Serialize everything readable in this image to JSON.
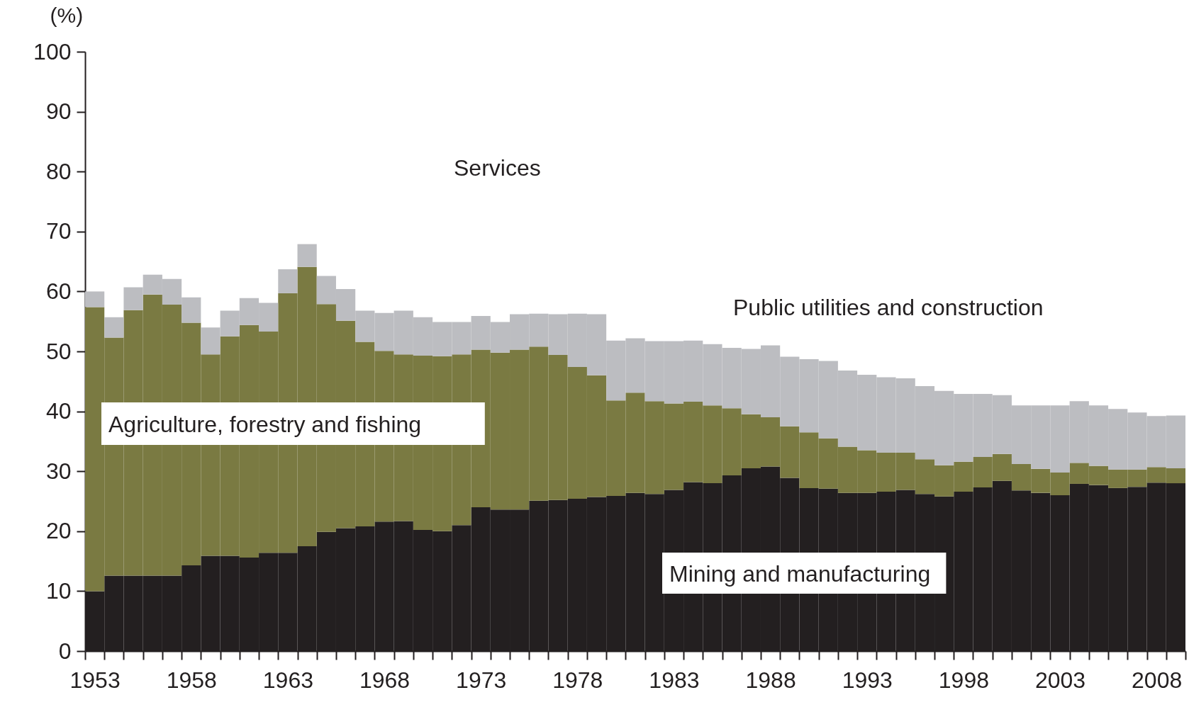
{
  "chart_data": {
    "type": "bar",
    "stacked": true,
    "ylabel": "(%)",
    "annotations": [
      "Services"
    ],
    "categories": [
      "1953",
      null,
      null,
      null,
      null,
      "1958",
      null,
      null,
      null,
      null,
      "1963",
      null,
      null,
      null,
      null,
      "1968",
      null,
      null,
      null,
      null,
      "1973",
      null,
      null,
      null,
      null,
      "1978",
      null,
      null,
      null,
      null,
      "1983",
      null,
      null,
      null,
      null,
      "1988",
      null,
      null,
      null,
      null,
      "1993",
      null,
      null,
      null,
      null,
      "1998",
      null,
      null,
      null,
      null,
      "2003",
      null,
      null,
      null,
      null,
      "2008",
      null
    ],
    "ylim": [
      0,
      100
    ],
    "yticks": [
      0,
      10,
      20,
      30,
      40,
      50,
      60,
      70,
      80,
      90,
      100
    ],
    "series": [
      {
        "name": "Mining and manufacturing",
        "color": "#231f20",
        "values": [
          10.0,
          12.6,
          12.6,
          12.6,
          12.6,
          14.3,
          15.9,
          15.9,
          15.6,
          16.4,
          16.4,
          17.5,
          19.9,
          20.5,
          20.8,
          21.6,
          21.7,
          20.2,
          20.0,
          21.0,
          24.0,
          23.6,
          23.6,
          25.1,
          25.2,
          25.4,
          25.7,
          25.9,
          26.4,
          26.2,
          26.9,
          28.2,
          28.0,
          29.3,
          30.5,
          30.8,
          28.9,
          27.2,
          27.1,
          26.4,
          26.4,
          26.6,
          26.9,
          26.2,
          25.8,
          26.6,
          27.3,
          28.4,
          26.8,
          26.4,
          26.0,
          27.9,
          27.7,
          27.2,
          27.4,
          28.1,
          28.0
        ]
      },
      {
        "name": "Agriculture, forestry and fishing",
        "color": "#7a7a42",
        "values": [
          47.4,
          39.7,
          44.3,
          46.9,
          45.2,
          40.5,
          33.6,
          36.6,
          38.8,
          36.9,
          43.3,
          46.6,
          38.0,
          34.6,
          30.8,
          28.5,
          27.8,
          29.1,
          29.2,
          28.5,
          26.3,
          26.2,
          26.7,
          25.7,
          24.2,
          22.0,
          20.3,
          15.9,
          16.7,
          15.5,
          14.4,
          13.4,
          13.0,
          11.2,
          9.0,
          8.2,
          8.6,
          9.3,
          8.4,
          7.7,
          7.1,
          6.5,
          6.2,
          5.8,
          5.2,
          5.0,
          5.1,
          4.5,
          4.4,
          4.0,
          3.8,
          3.5,
          3.2,
          3.1,
          2.9,
          2.6,
          2.5
        ]
      },
      {
        "name": "Public utilities and construction",
        "color": "#bcbdc1",
        "values": [
          2.6,
          3.4,
          3.8,
          3.3,
          4.3,
          4.2,
          4.5,
          4.3,
          4.5,
          4.8,
          4.0,
          3.8,
          4.7,
          5.3,
          5.2,
          6.3,
          7.3,
          6.4,
          5.7,
          5.4,
          5.6,
          5.1,
          5.9,
          5.5,
          6.8,
          8.9,
          10.2,
          10.0,
          9.1,
          10.0,
          10.4,
          10.2,
          10.2,
          10.1,
          10.9,
          12.0,
          11.6,
          12.2,
          12.9,
          12.7,
          12.6,
          12.6,
          12.4,
          12.2,
          12.4,
          11.3,
          10.5,
          9.8,
          9.8,
          10.6,
          11.2,
          10.3,
          10.1,
          10.1,
          9.5,
          8.5,
          8.8
        ]
      }
    ]
  }
}
